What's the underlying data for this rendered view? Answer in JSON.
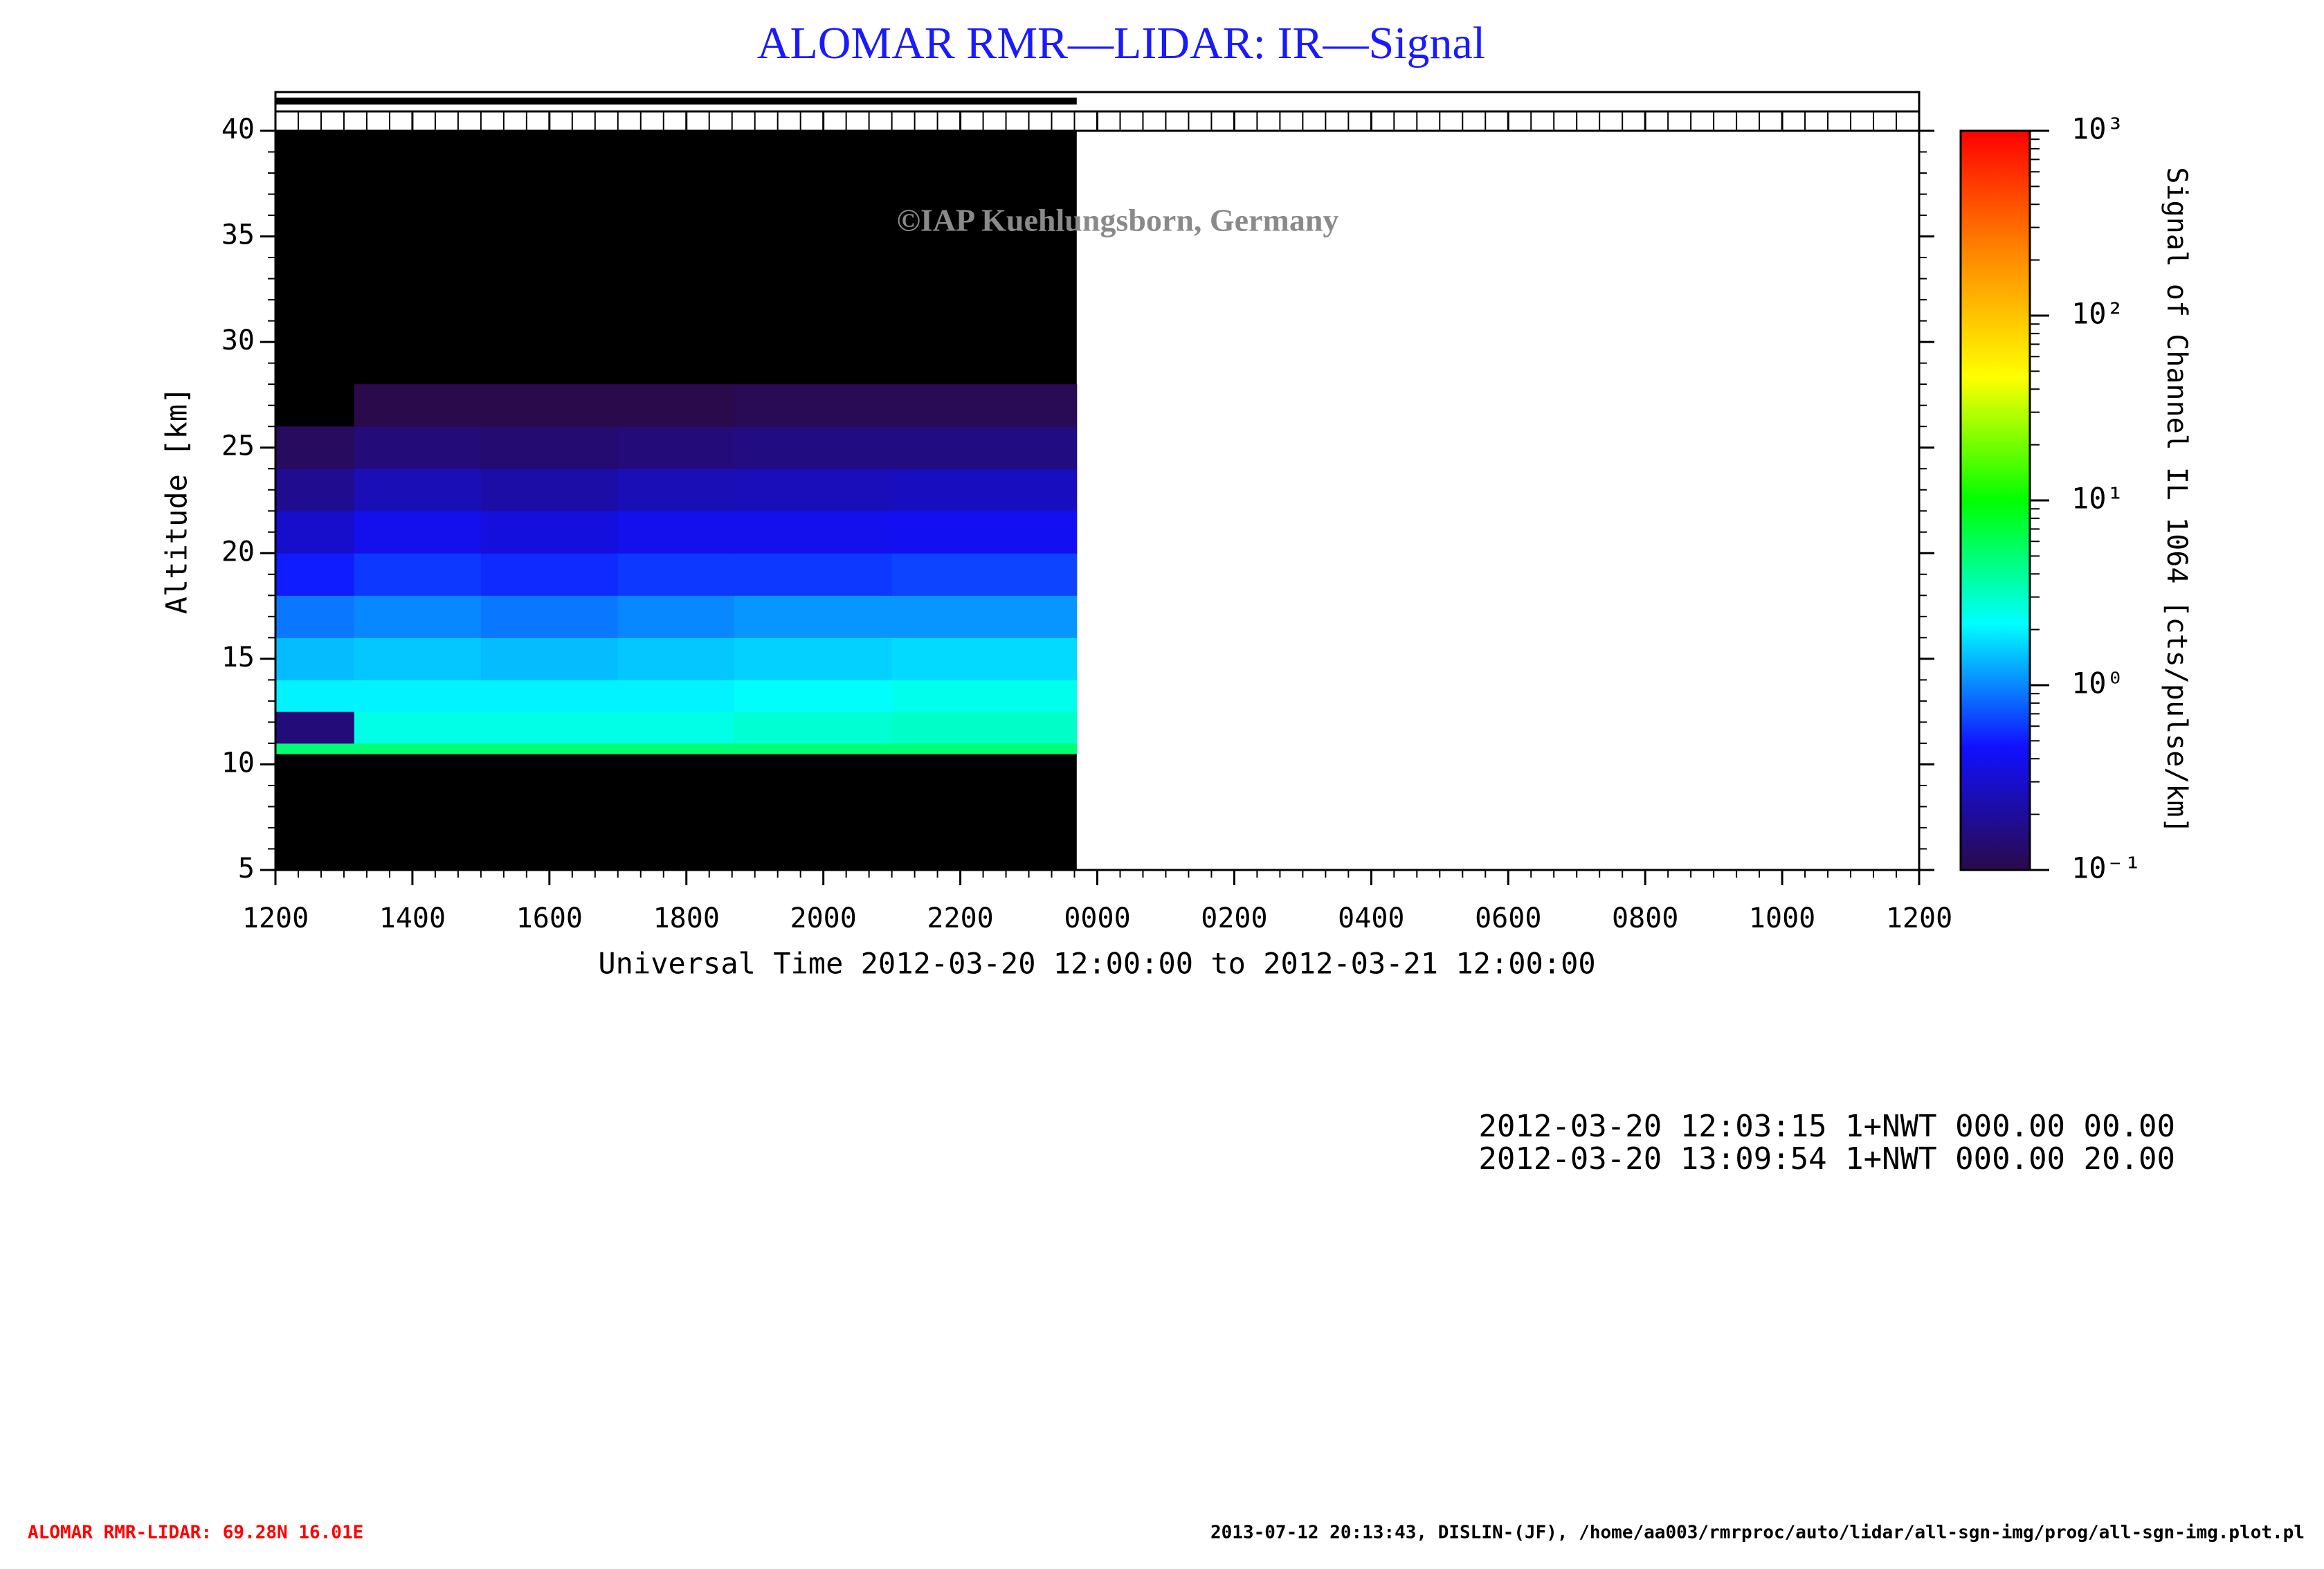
{
  "chart_data": {
    "type": "heatmap",
    "title": "ALOMAR RMR—LIDAR: IR—Signal",
    "watermark": "©IAP Kuehlungsborn, Germany",
    "ylabel": "Altitude [km]",
    "xlabel": "Universal Time 2012-03-20 12:00:00 to 2012-03-21 12:00:00",
    "colorbar_label": "Signal of Channel IL 1064 [cts/pulse/km]",
    "xlim": [
      0,
      24
    ],
    "xticks": [
      {
        "value": 0,
        "label": "1200"
      },
      {
        "value": 2,
        "label": "1400"
      },
      {
        "value": 4,
        "label": "1600"
      },
      {
        "value": 6,
        "label": "1800"
      },
      {
        "value": 8,
        "label": "2000"
      },
      {
        "value": 10,
        "label": "2200"
      },
      {
        "value": 12,
        "label": "0000"
      },
      {
        "value": 14,
        "label": "0200"
      },
      {
        "value": 16,
        "label": "0400"
      },
      {
        "value": 18,
        "label": "0600"
      },
      {
        "value": 20,
        "label": "0800"
      },
      {
        "value": 22,
        "label": "1000"
      },
      {
        "value": 24,
        "label": "1200"
      }
    ],
    "ylim": [
      5,
      40
    ],
    "yticks": [
      5,
      10,
      15,
      20,
      25,
      30,
      35,
      40
    ],
    "zlim": [
      0.1,
      1000
    ],
    "zticks": [
      {
        "value": 0.1,
        "label": "10⁻¹"
      },
      {
        "value": 1,
        "label": "10⁰"
      },
      {
        "value": 10,
        "label": "10¹"
      },
      {
        "value": 100,
        "label": "10²"
      },
      {
        "value": 1000,
        "label": "10³"
      }
    ],
    "log_color": true,
    "colormap": [
      "#2a0a4a",
      "#1010ff",
      "#00ffff",
      "#00ff00",
      "#ffff00",
      "#ff8800",
      "#ff0000"
    ],
    "x_edges": [
      0,
      1.15,
      3,
      5,
      6.7,
      9,
      11.7
    ],
    "y_edges": [
      5,
      10.5,
      11,
      12.5,
      14,
      16,
      18,
      20,
      22,
      24,
      26,
      28,
      40
    ],
    "z": [
      [
        null,
        null,
        null,
        null,
        null,
        null
      ],
      [
        5,
        5,
        5,
        5,
        5,
        5
      ],
      [
        0.15,
        2.5,
        2.5,
        2.5,
        2.8,
        3
      ],
      [
        2,
        2,
        2,
        2,
        2.2,
        2.4
      ],
      [
        1.4,
        1.5,
        1.4,
        1.5,
        1.6,
        1.7
      ],
      [
        0.9,
        1,
        0.9,
        1,
        1.1,
        1.1
      ],
      [
        0.5,
        0.6,
        0.55,
        0.6,
        0.6,
        0.65
      ],
      [
        0.3,
        0.4,
        0.35,
        0.4,
        0.4,
        0.42
      ],
      [
        0.18,
        0.25,
        0.22,
        0.25,
        0.26,
        0.27
      ],
      [
        0.12,
        0.15,
        0.14,
        0.15,
        0.16,
        0.16
      ],
      [
        null,
        0.1,
        0.1,
        0.1,
        0.11,
        0.11
      ],
      [
        null,
        null,
        null,
        null,
        null,
        null
      ]
    ],
    "info_lines": [
      "2012-03-20 12:03:15 1+NWT 000.00 00.00",
      "2012-03-20 13:09:54 1+NWT 000.00 20.00"
    ],
    "footer_left": "ALOMAR RMR-LIDAR: 69.28N 16.01E",
    "footer_right": "2013-07-12 20:13:43, DISLIN-(JF), /home/aa003/rmrproc/auto/lidar/all-sgn-img/prog/all-sgn-img.plot.pl"
  }
}
